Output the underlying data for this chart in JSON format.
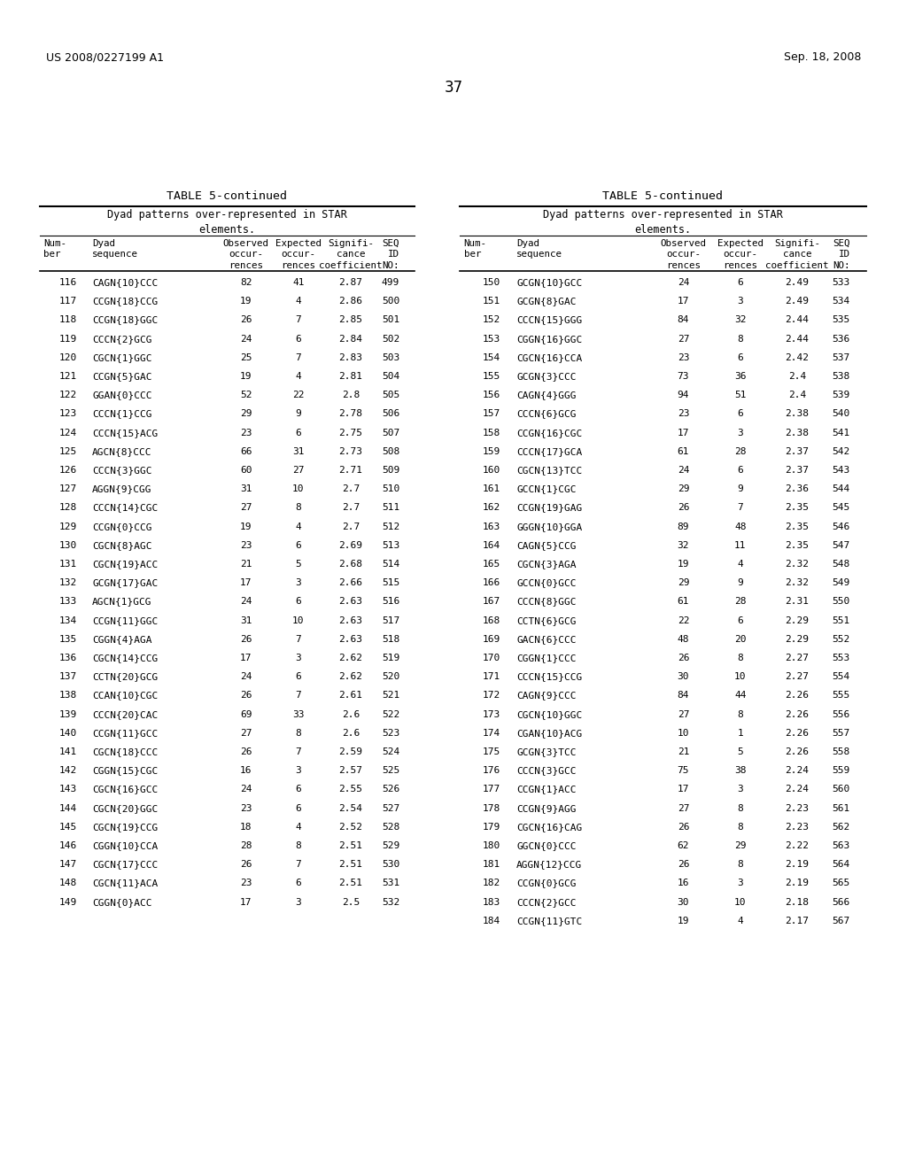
{
  "header_left": "US 2008/0227199 A1",
  "header_right": "Sep. 18, 2008",
  "page_number": "37",
  "table_title": "TABLE 5-continued",
  "subtitle": "Dyad patterns over-represented in STAR\nelements.",
  "left_table": [
    [
      "116",
      "CAGN{10}CCC",
      "82",
      "41",
      "2.87",
      "499"
    ],
    [
      "117",
      "CCGN{18}CCG",
      "19",
      "4",
      "2.86",
      "500"
    ],
    [
      "118",
      "CCGN{18}GGC",
      "26",
      "7",
      "2.85",
      "501"
    ],
    [
      "119",
      "CCCN{2}GCG",
      "24",
      "6",
      "2.84",
      "502"
    ],
    [
      "120",
      "CGCN{1}GGC",
      "25",
      "7",
      "2.83",
      "503"
    ],
    [
      "121",
      "CCGN{5}GAC",
      "19",
      "4",
      "2.81",
      "504"
    ],
    [
      "122",
      "GGAN{0}CCC",
      "52",
      "22",
      "2.8",
      "505"
    ],
    [
      "123",
      "CCCN{1}CCG",
      "29",
      "9",
      "2.78",
      "506"
    ],
    [
      "124",
      "CCCN{15}ACG",
      "23",
      "6",
      "2.75",
      "507"
    ],
    [
      "125",
      "AGCN{8}CCC",
      "66",
      "31",
      "2.73",
      "508"
    ],
    [
      "126",
      "CCCN{3}GGC",
      "60",
      "27",
      "2.71",
      "509"
    ],
    [
      "127",
      "AGGN{9}CGG",
      "31",
      "10",
      "2.7",
      "510"
    ],
    [
      "128",
      "CCCN{14}CGC",
      "27",
      "8",
      "2.7",
      "511"
    ],
    [
      "129",
      "CCGN{0}CCG",
      "19",
      "4",
      "2.7",
      "512"
    ],
    [
      "130",
      "CGCN{8}AGC",
      "23",
      "6",
      "2.69",
      "513"
    ],
    [
      "131",
      "CGCN{19}ACC",
      "21",
      "5",
      "2.68",
      "514"
    ],
    [
      "132",
      "GCGN{17}GAC",
      "17",
      "3",
      "2.66",
      "515"
    ],
    [
      "133",
      "AGCN{1}GCG",
      "24",
      "6",
      "2.63",
      "516"
    ],
    [
      "134",
      "CCGN{11}GGC",
      "31",
      "10",
      "2.63",
      "517"
    ],
    [
      "135",
      "CGGN{4}AGA",
      "26",
      "7",
      "2.63",
      "518"
    ],
    [
      "136",
      "CGCN{14}CCG",
      "17",
      "3",
      "2.62",
      "519"
    ],
    [
      "137",
      "CCTN{20}GCG",
      "24",
      "6",
      "2.62",
      "520"
    ],
    [
      "138",
      "CCAN{10}CGC",
      "26",
      "7",
      "2.61",
      "521"
    ],
    [
      "139",
      "CCCN{20}CAC",
      "69",
      "33",
      "2.6",
      "522"
    ],
    [
      "140",
      "CCGN{11}GCC",
      "27",
      "8",
      "2.6",
      "523"
    ],
    [
      "141",
      "CGCN{18}CCC",
      "26",
      "7",
      "2.59",
      "524"
    ],
    [
      "142",
      "CGGN{15}CGC",
      "16",
      "3",
      "2.57",
      "525"
    ],
    [
      "143",
      "CGCN{16}GCC",
      "24",
      "6",
      "2.55",
      "526"
    ],
    [
      "144",
      "CGCN{20}GGC",
      "23",
      "6",
      "2.54",
      "527"
    ],
    [
      "145",
      "CGCN{19}CCG",
      "18",
      "4",
      "2.52",
      "528"
    ],
    [
      "146",
      "CGGN{10}CCA",
      "28",
      "8",
      "2.51",
      "529"
    ],
    [
      "147",
      "CGCN{17}CCC",
      "26",
      "7",
      "2.51",
      "530"
    ],
    [
      "148",
      "CGCN{11}ACA",
      "23",
      "6",
      "2.51",
      "531"
    ],
    [
      "149",
      "CGGN{0}ACC",
      "17",
      "3",
      "2.5",
      "532"
    ]
  ],
  "right_table": [
    [
      "150",
      "GCGN{10}GCC",
      "24",
      "6",
      "2.49",
      "533"
    ],
    [
      "151",
      "GCGN{8}GAC",
      "17",
      "3",
      "2.49",
      "534"
    ],
    [
      "152",
      "CCCN{15}GGG",
      "84",
      "32",
      "2.44",
      "535"
    ],
    [
      "153",
      "CGGN{16}GGC",
      "27",
      "8",
      "2.44",
      "536"
    ],
    [
      "154",
      "CGCN{16}CCA",
      "23",
      "6",
      "2.42",
      "537"
    ],
    [
      "155",
      "GCGN{3}CCC",
      "73",
      "36",
      "2.4",
      "538"
    ],
    [
      "156",
      "CAGN{4}GGG",
      "94",
      "51",
      "2.4",
      "539"
    ],
    [
      "157",
      "CCCN{6}GCG",
      "23",
      "6",
      "2.38",
      "540"
    ],
    [
      "158",
      "CCGN{16}CGC",
      "17",
      "3",
      "2.38",
      "541"
    ],
    [
      "159",
      "CCCN{17}GCA",
      "61",
      "28",
      "2.37",
      "542"
    ],
    [
      "160",
      "CGCN{13}TCC",
      "24",
      "6",
      "2.37",
      "543"
    ],
    [
      "161",
      "GCCN{1}CGC",
      "29",
      "9",
      "2.36",
      "544"
    ],
    [
      "162",
      "CCGN{19}GAG",
      "26",
      "7",
      "2.35",
      "545"
    ],
    [
      "163",
      "GGGN{10}GGA",
      "89",
      "48",
      "2.35",
      "546"
    ],
    [
      "164",
      "CAGN{5}CCG",
      "32",
      "11",
      "2.35",
      "547"
    ],
    [
      "165",
      "CGCN{3}AGA",
      "19",
      "4",
      "2.32",
      "548"
    ],
    [
      "166",
      "GCCN{0}GCC",
      "29",
      "9",
      "2.32",
      "549"
    ],
    [
      "167",
      "CCCN{8}GGC",
      "61",
      "28",
      "2.31",
      "550"
    ],
    [
      "168",
      "CCTN{6}GCG",
      "22",
      "6",
      "2.29",
      "551"
    ],
    [
      "169",
      "GACN{6}CCC",
      "48",
      "20",
      "2.29",
      "552"
    ],
    [
      "170",
      "CGGN{1}CCC",
      "26",
      "8",
      "2.27",
      "553"
    ],
    [
      "171",
      "CCCN{15}CCG",
      "30",
      "10",
      "2.27",
      "554"
    ],
    [
      "172",
      "CAGN{9}CCC",
      "84",
      "44",
      "2.26",
      "555"
    ],
    [
      "173",
      "CGCN{10}GGC",
      "27",
      "8",
      "2.26",
      "556"
    ],
    [
      "174",
      "CGAN{10}ACG",
      "10",
      "1",
      "2.26",
      "557"
    ],
    [
      "175",
      "GCGN{3}TCC",
      "21",
      "5",
      "2.26",
      "558"
    ],
    [
      "176",
      "CCCN{3}GCC",
      "75",
      "38",
      "2.24",
      "559"
    ],
    [
      "177",
      "CCGN{1}ACC",
      "17",
      "3",
      "2.24",
      "560"
    ],
    [
      "178",
      "CCGN{9}AGG",
      "27",
      "8",
      "2.23",
      "561"
    ],
    [
      "179",
      "CGCN{16}CAG",
      "26",
      "8",
      "2.23",
      "562"
    ],
    [
      "180",
      "GGCN{0}CCC",
      "62",
      "29",
      "2.22",
      "563"
    ],
    [
      "181",
      "AGGN{12}CCG",
      "26",
      "8",
      "2.19",
      "564"
    ],
    [
      "182",
      "CCGN{0}GCG",
      "16",
      "3",
      "2.19",
      "565"
    ],
    [
      "183",
      "CCCN{2}GCC",
      "30",
      "10",
      "2.18",
      "566"
    ],
    [
      "184",
      "CCGN{11}GTC",
      "19",
      "4",
      "2.17",
      "567"
    ]
  ]
}
